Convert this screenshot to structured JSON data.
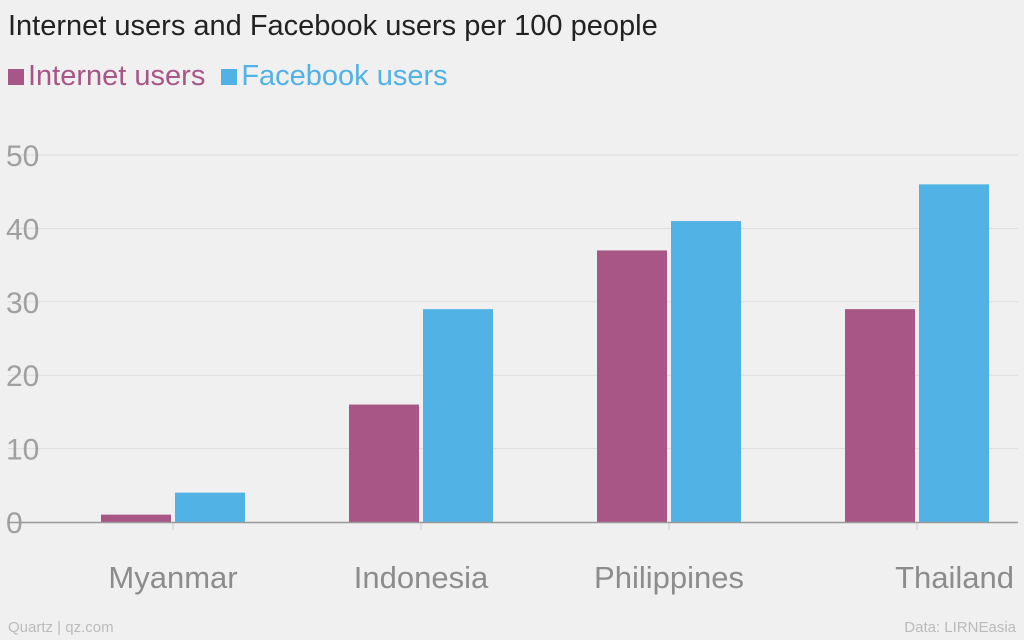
{
  "title": "Internet users and Facebook users per 100 people",
  "footer": {
    "source_left": "Quartz | qz.com",
    "source_right": "Data: LIRNEasia"
  },
  "colors": {
    "internet": "#a85686",
    "facebook": "#51b2e5",
    "grid": "#dddddd",
    "axis": "#999999",
    "tick_text": "#a0a0a0",
    "category_text": "#8c8c8c"
  },
  "chart_data": {
    "type": "bar",
    "title": "Internet users and Facebook users per 100 people",
    "categories": [
      "Myanmar",
      "Indonesia",
      "Philippines",
      "Thailand"
    ],
    "series": [
      {
        "name": "Internet users",
        "values": [
          1,
          16,
          37,
          29
        ]
      },
      {
        "name": "Facebook users",
        "values": [
          4,
          29,
          41,
          46
        ]
      }
    ],
    "yticks": [
      0,
      10,
      20,
      30,
      40,
      50
    ],
    "ylim": [
      0,
      50
    ],
    "xlabel": "",
    "ylabel": "",
    "grid": true,
    "legend": "top-left"
  }
}
